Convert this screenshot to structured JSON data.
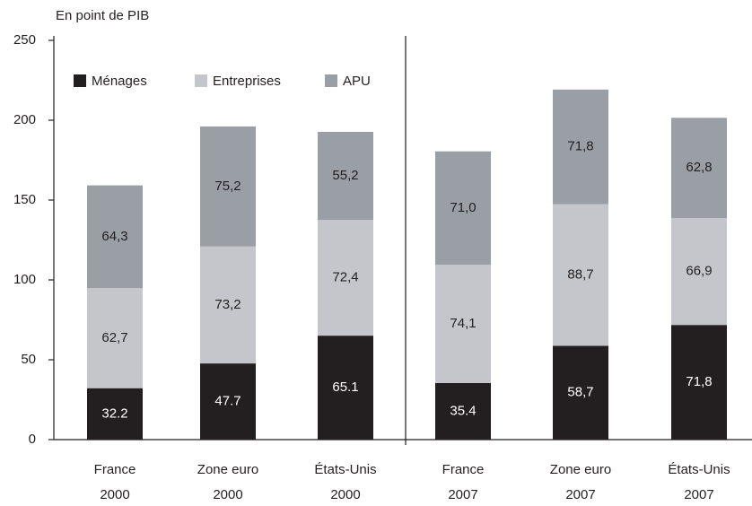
{
  "chart_data": {
    "type": "stacked_bar",
    "y_axis_label": "En point de PIB",
    "categories": [
      [
        "France",
        "2000"
      ],
      [
        "Zone euro",
        "2000"
      ],
      [
        "États-Unis",
        "2000"
      ],
      [
        "France",
        "2007"
      ],
      [
        "Zone euro",
        "2007"
      ],
      [
        "États-Unis",
        "2007"
      ]
    ],
    "series": [
      {
        "name": "Ménages",
        "color": "#231f20",
        "values": [
          32.2,
          47.7,
          65.1,
          35.4,
          58.7,
          71.8
        ],
        "value_labels": [
          "32.2",
          "47.7",
          "65.1",
          "35.4",
          "58,7",
          "71,8"
        ]
      },
      {
        "name": "Entreprises",
        "color": "#c4c6cc",
        "values": [
          62.7,
          73.2,
          72.4,
          74.1,
          88.7,
          66.9
        ],
        "value_labels": [
          "62,7",
          "73,2",
          "72,4",
          "74,1",
          "88,7",
          "66,9"
        ]
      },
      {
        "name": "APU",
        "color": "#9a9fa5",
        "values": [
          64.3,
          75.2,
          55.2,
          71.0,
          71.8,
          62.8
        ],
        "value_labels": [
          "64,3",
          "75,2",
          "55,2",
          "71,0",
          "71,8",
          "62,8"
        ]
      }
    ],
    "ylim": [
      0,
      250
    ],
    "yticks": [
      0,
      50,
      100,
      150,
      200,
      250
    ],
    "grid": false,
    "legend": "top-left"
  }
}
